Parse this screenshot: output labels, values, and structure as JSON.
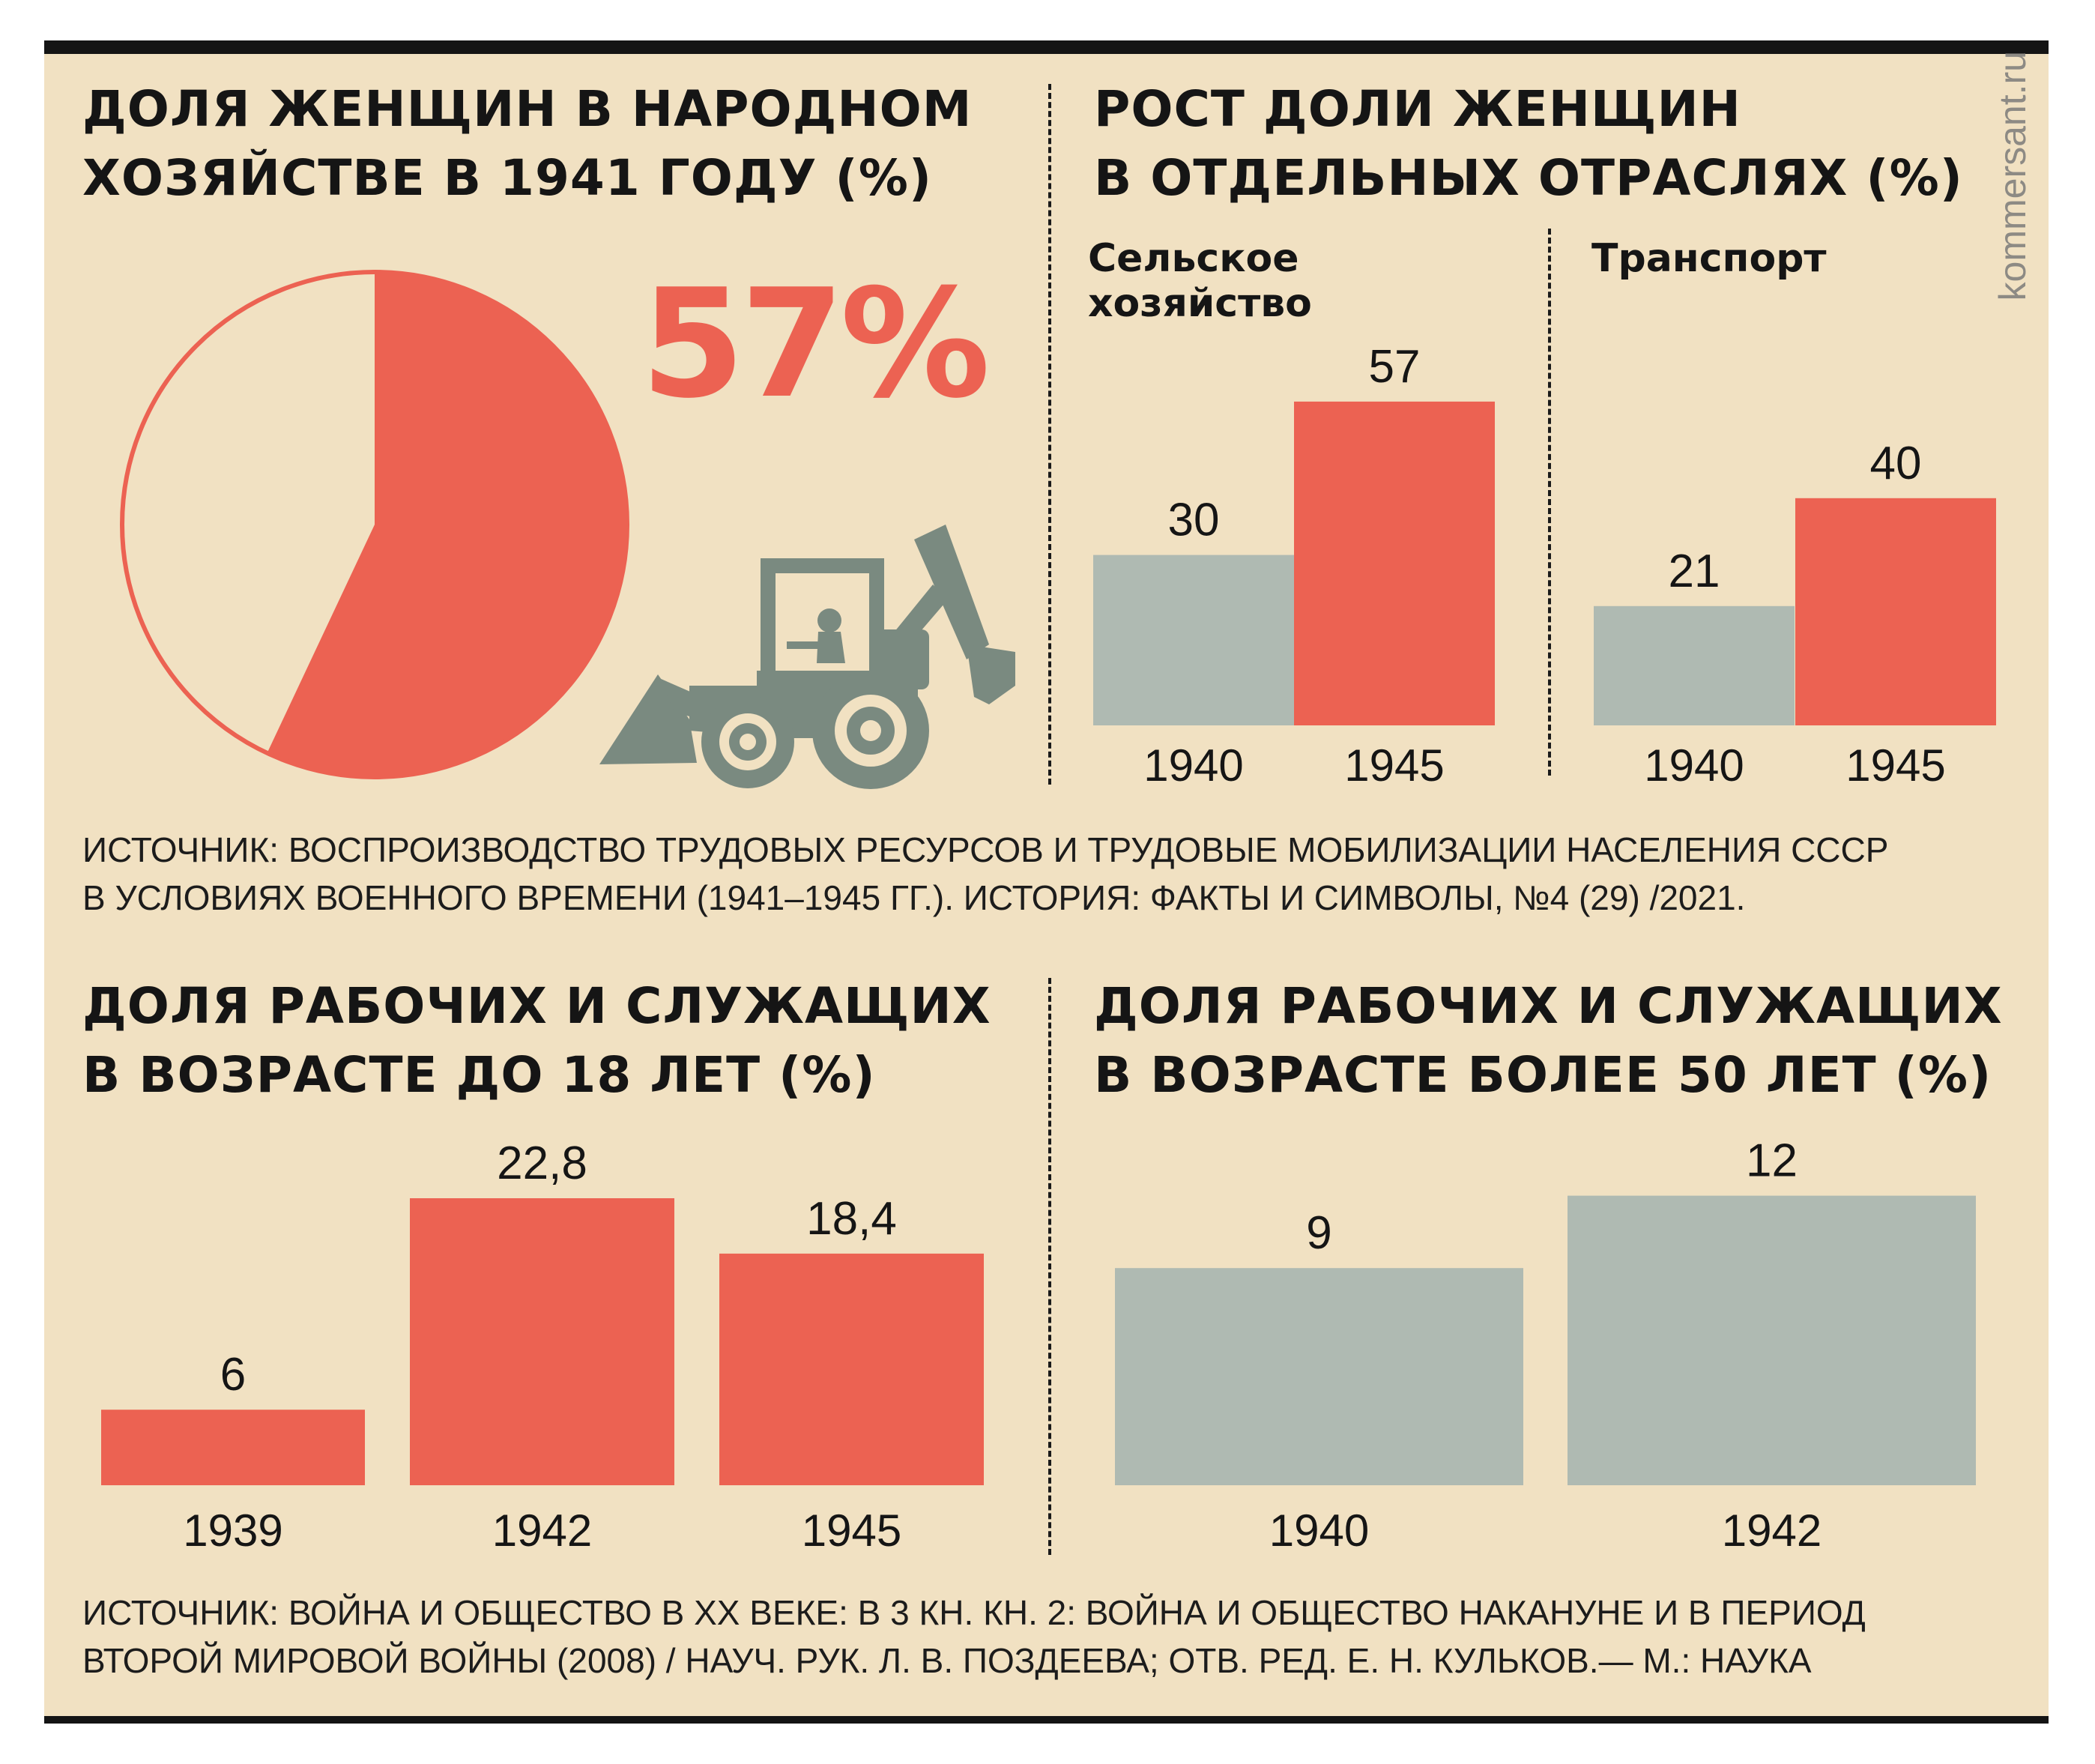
{
  "watermark": "kommersant.ru",
  "colors": {
    "background": "#f1e1c2",
    "accent": "#ec6252",
    "gray": "#afbab2",
    "text": "#151515"
  },
  "panels": {
    "pie": {
      "title_line1": "ДОЛЯ ЖЕНЩИН В НАРОДНОМ",
      "title_line2": "ХОЗЯЙСТВЕ В 1941 ГОДУ (%)",
      "big_value": "57%",
      "illustration": "backhoe-loader-icon"
    },
    "sectors": {
      "title_line1": "РОСТ ДОЛИ ЖЕНЩИН",
      "title_line2": "В ОТДЕЛЬНЫХ ОТРАСЛЯХ (%)",
      "agri_line1": "Сельское",
      "agri_line2": "хозяйство",
      "transport": "Транспорт"
    },
    "under18": {
      "title_line1": "ДОЛЯ РАБОЧИХ И СЛУЖАЩИХ",
      "title_line2": "В ВОЗРАСТЕ ДО 18 ЛЕТ (%)"
    },
    "over50": {
      "title_line1": "ДОЛЯ РАБОЧИХ И СЛУЖАЩИХ",
      "title_line2": "В ВОЗРАСТЕ БОЛЕЕ 50 ЛЕТ (%)"
    }
  },
  "sources": {
    "top_line1": "ИСТОЧНИК: ВОСПРОИЗВОДСТВО ТРУДОВЫХ РЕСУРСОВ И ТРУДОВЫЕ МОБИЛИЗАЦИИ НАСЕЛЕНИЯ СССР",
    "top_line2": "В УСЛОВИЯХ ВОЕННОГО ВРЕМЕНИ (1941–1945 ГГ.). ИСТОРИЯ: ФАКТЫ И СИМВОЛЫ, №4 (29) /2021.",
    "bottom_line1": "ИСТОЧНИК: ВОЙНА И ОБЩЕСТВО В XX ВЕКЕ: В 3 КН. КН. 2: ВОЙНА И ОБЩЕСТВО НАКАНУНЕ И В ПЕРИОД",
    "bottom_line2": "ВТОРОЙ МИРОВОЙ ВОЙНЫ (2008) / НАУЧ. РУК. Л. В. ПОЗДЕЕВА; ОТВ. РЕД. Е. Н. КУЛЬКОВ.— М.: НАУКА"
  },
  "chart_data": [
    {
      "type": "pie",
      "title": "ДОЛЯ ЖЕНЩИН В НАРОДНОМ ХОЗЯЙСТВЕ В 1941 ГОДУ (%)",
      "values": [
        57,
        43
      ],
      "highlight_label": "57%",
      "colors": [
        "#ec6252",
        "#f1e1c2"
      ]
    },
    {
      "type": "bar",
      "title": "Сельское хозяйство",
      "categories": [
        "1940",
        "1945"
      ],
      "values": [
        30,
        57
      ],
      "value_labels": [
        "30",
        "57"
      ],
      "colors": [
        "#afbab2",
        "#ec6252"
      ]
    },
    {
      "type": "bar",
      "title": "Транспорт",
      "categories": [
        "1940",
        "1945"
      ],
      "values": [
        21,
        40
      ],
      "value_labels": [
        "21",
        "40"
      ],
      "colors": [
        "#afbab2",
        "#ec6252"
      ]
    },
    {
      "type": "bar",
      "title": "ДОЛЯ РАБОЧИХ И СЛУЖАЩИХ В ВОЗРАСТЕ ДО 18 ЛЕТ (%)",
      "categories": [
        "1939",
        "1942",
        "1945"
      ],
      "values": [
        6,
        22.8,
        18.4
      ],
      "value_labels": [
        "6",
        "22,8",
        "18,4"
      ],
      "colors": [
        "#ec6252",
        "#ec6252",
        "#ec6252"
      ]
    },
    {
      "type": "bar",
      "title": "ДОЛЯ РАБОЧИХ И СЛУЖАЩИХ В ВОЗРАСТЕ БОЛЕЕ 50 ЛЕТ (%)",
      "categories": [
        "1940",
        "1942"
      ],
      "values": [
        9,
        12
      ],
      "value_labels": [
        "9",
        "12"
      ],
      "colors": [
        "#afbab2",
        "#afbab2"
      ]
    }
  ]
}
